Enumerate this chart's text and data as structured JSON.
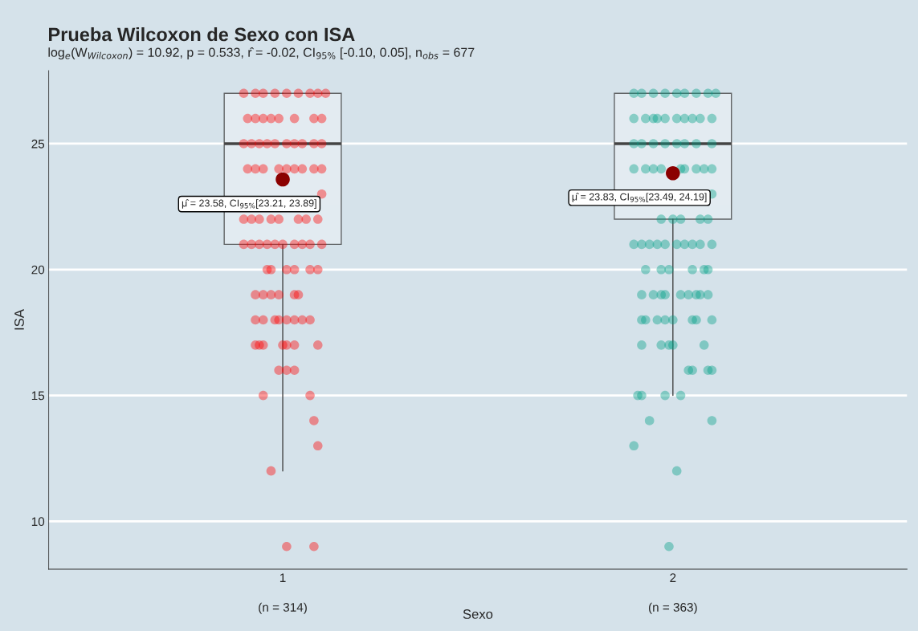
{
  "chart_data": {
    "type": "box",
    "title": "Prueba Wilcoxon de Sexo con ISA",
    "subtitle": "log$_{e}$(W$_{Wilcoxon}$) = 10.92, p = 0.533, r̂ = -0.02, CI$_{95%}$ [-0.10, 0.05], n$_{obs}$ = 677",
    "xlabel": "Sexo",
    "ylabel": "ISA",
    "x": [
      1,
      2
    ],
    "boxes": [
      {
        "low": 12,
        "q1": 21,
        "median": 25,
        "q3": 27,
        "high": 27
      },
      {
        "low": 15,
        "q1": 22,
        "median": 25,
        "q3": 27,
        "high": 27
      }
    ],
    "series": [
      {
        "type": "scatter",
        "color": "#ff0000",
        "x": [
          0.9,
          0.93,
          0.95,
          0.98,
          1.01,
          1.04,
          1.07,
          1.09,
          1.11,
          0.91,
          0.93,
          0.95,
          0.97,
          0.99,
          1.03,
          1.08,
          1.1,
          0.9,
          0.92,
          0.94,
          0.96,
          0.98,
          1.01,
          1.03,
          1.05,
          1.08,
          1.1,
          0.91,
          0.93,
          0.95,
          0.99,
          1.01,
          1.03,
          1.05,
          1.08,
          1.1,
          1.1,
          0.9,
          0.92,
          0.94,
          0.97,
          0.99,
          1.04,
          1.06,
          1.09,
          0.9,
          0.92,
          0.94,
          0.96,
          0.98,
          1.0,
          1.03,
          1.05,
          1.07,
          1.1,
          0.96,
          0.97,
          1.01,
          1.03,
          1.07,
          1.09,
          0.93,
          0.95,
          0.97,
          0.99,
          1.03,
          1.04,
          0.93,
          0.95,
          0.98,
          0.99,
          1.01,
          1.03,
          1.05,
          1.07,
          0.93,
          0.94,
          0.95,
          1.0,
          1.01,
          1.03,
          1.09,
          0.99,
          1.01,
          1.03,
          0.95,
          1.07,
          1.08,
          1.09,
          0.97,
          1.01,
          1.08
        ],
        "values": [
          27,
          27,
          27,
          27,
          27,
          27,
          27,
          27,
          27,
          26,
          26,
          26,
          26,
          26,
          26,
          26,
          26,
          25,
          25,
          25,
          25,
          25,
          25,
          25,
          25,
          25,
          25,
          24,
          24,
          24,
          24,
          24,
          24,
          24,
          24,
          24,
          23,
          22,
          22,
          22,
          22,
          22,
          22,
          22,
          22,
          21,
          21,
          21,
          21,
          21,
          21,
          21,
          21,
          21,
          21,
          20,
          20,
          20,
          20,
          20,
          20,
          19,
          19,
          19,
          19,
          19,
          19,
          18,
          18,
          18,
          18,
          18,
          18,
          18,
          18,
          17,
          17,
          17,
          17,
          17,
          17,
          17,
          16,
          16,
          16,
          15,
          15,
          14,
          13,
          12,
          9,
          9
        ]
      },
      {
        "type": "scatter",
        "color": "#00a087",
        "x": [
          1.9,
          1.92,
          1.95,
          1.98,
          2.01,
          2.03,
          2.06,
          2.09,
          2.11,
          1.9,
          1.93,
          1.95,
          1.96,
          1.98,
          2.01,
          2.03,
          2.05,
          2.07,
          2.1,
          1.9,
          1.92,
          1.95,
          1.98,
          2.01,
          2.03,
          2.06,
          2.1,
          1.9,
          1.93,
          1.95,
          1.97,
          2.02,
          2.03,
          2.06,
          2.08,
          2.1,
          2.1,
          1.97,
          2.0,
          2.02,
          2.07,
          2.09,
          1.9,
          1.92,
          1.94,
          1.96,
          1.98,
          2.01,
          2.03,
          2.05,
          2.07,
          2.1,
          1.93,
          1.97,
          1.99,
          2.05,
          2.08,
          2.09,
          1.92,
          1.95,
          1.97,
          1.98,
          2.02,
          2.04,
          2.06,
          2.07,
          2.09,
          1.92,
          1.93,
          1.96,
          1.98,
          2.0,
          2.05,
          2.06,
          2.1,
          1.92,
          1.97,
          1.99,
          2.0,
          2.08,
          2.04,
          2.05,
          2.09,
          2.1,
          1.91,
          1.92,
          1.98,
          2.02,
          1.94,
          2.1,
          1.9,
          2.01,
          1.99
        ],
        "values": [
          27,
          27,
          27,
          27,
          27,
          27,
          27,
          27,
          27,
          26,
          26,
          26,
          26,
          26,
          26,
          26,
          26,
          26,
          26,
          25,
          25,
          25,
          25,
          25,
          25,
          25,
          25,
          24,
          24,
          24,
          24,
          24,
          24,
          24,
          24,
          24,
          23,
          22,
          22,
          22,
          22,
          22,
          21,
          21,
          21,
          21,
          21,
          21,
          21,
          21,
          21,
          21,
          20,
          20,
          20,
          20,
          20,
          20,
          19,
          19,
          19,
          19,
          19,
          19,
          19,
          19,
          19,
          18,
          18,
          18,
          18,
          18,
          18,
          18,
          18,
          17,
          17,
          17,
          17,
          17,
          16,
          16,
          16,
          16,
          15,
          15,
          15,
          15,
          14,
          14,
          13,
          12,
          9
        ]
      },
      {
        "type": "scatter",
        "color": "#8b0000",
        "x": [
          1,
          2
        ],
        "values": [
          23.58,
          23.83
        ]
      }
    ],
    "annotations": [
      {
        "text": "μ̂ = 23.58, CI$_{95%}$[23.21, 23.89]",
        "x": 1,
        "y": 23.58
      },
      {
        "text": "μ̂ = 23.83, CI$_{95%}$[23.49, 24.19]",
        "x": 2,
        "y": 23.83
      },
      "(n = 314)",
      "(n = 363)"
    ],
    "xlim": [
      0.4,
      2.6
    ],
    "xticks": [
      1,
      2
    ],
    "ylim": [
      8.1,
      27.9
    ],
    "yticks": [
      10,
      15,
      20,
      25
    ],
    "grid": "y"
  }
}
